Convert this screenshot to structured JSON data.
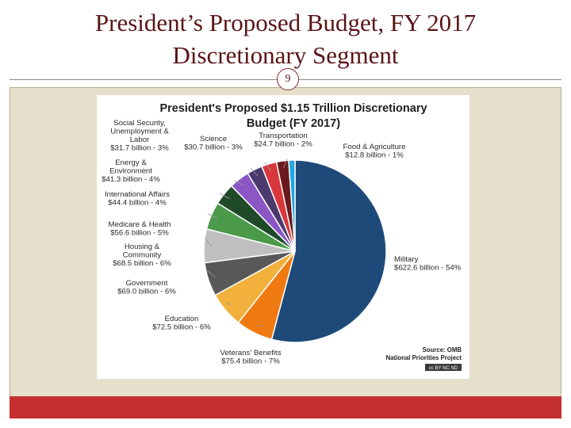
{
  "slide": {
    "title_line1": "President’s Proposed Budget, FY 2017",
    "title_line2": "Discretionary Segment",
    "page_number": "9"
  },
  "chart_data": {
    "type": "pie",
    "title_line1": "President's Proposed $1.15 Trillion Discretionary",
    "title_line2": "Budget (FY 2017)",
    "source_line1": "Source: OMB",
    "source_line2": "National Priorities Project",
    "license_badge": "cc BY NC ND",
    "units": "billion",
    "slices": [
      {
        "name": "Military",
        "value": 622.6,
        "percent": 54,
        "color": "#1e4a7a",
        "label_lines": [
          "Military",
          "$622.6 billion - 54%"
        ]
      },
      {
        "name": "Veterans' Benefits",
        "value": 75.4,
        "percent": 7,
        "color": "#f07a12",
        "label_lines": [
          "Veterans' Benefits",
          "$75.4 billion - 7%"
        ]
      },
      {
        "name": "Education",
        "value": 72.5,
        "percent": 6,
        "color": "#f2b03c",
        "label_lines": [
          "Education",
          "$72.5 billion - 6%"
        ]
      },
      {
        "name": "Government",
        "value": 69.0,
        "percent": 6,
        "color": "#585858",
        "label_lines": [
          "Government",
          "$69.0 billion - 6%"
        ]
      },
      {
        "name": "Housing & Community",
        "value": 68.5,
        "percent": 6,
        "color": "#bfbfbf",
        "label_lines": [
          "Housing &",
          "Community",
          "$68.5 billion - 6%"
        ]
      },
      {
        "name": "Medicare & Health",
        "value": 56.6,
        "percent": 5,
        "color": "#4a9a4a",
        "label_lines": [
          "Medicare & Health",
          "$56.6 billion - 5%"
        ]
      },
      {
        "name": "International Affairs",
        "value": 44.4,
        "percent": 4,
        "color": "#1f4a2a",
        "label_lines": [
          "International Affairs",
          "$44.4 billion - 4%"
        ]
      },
      {
        "name": "Energy & Environment",
        "value": 41.3,
        "percent": 4,
        "color": "#8a57c4",
        "label_lines": [
          "Energy &",
          "Environment",
          "$41.3 billion - 4%"
        ]
      },
      {
        "name": "Social Security, Unemployment & Labor",
        "value": 31.7,
        "percent": 3,
        "color": "#4a3a6e",
        "label_lines": [
          "Social Security,",
          "Unemployment &",
          "Labor",
          "$31.7 billion - 3%"
        ]
      },
      {
        "name": "Science",
        "value": 30.7,
        "percent": 3,
        "color": "#d8383c",
        "label_lines": [
          "Science",
          "$30.7 billion - 3%"
        ]
      },
      {
        "name": "Transportation",
        "value": 24.7,
        "percent": 2,
        "color": "#6a1a1e",
        "label_lines": [
          "Transportation",
          "$24.7 billion - 2%"
        ]
      },
      {
        "name": "Food & Agriculture",
        "value": 12.8,
        "percent": 1,
        "color": "#1aa6e6",
        "label_lines": [
          "Food & Agriculture",
          "$12.8 billion - 1%"
        ]
      }
    ]
  }
}
